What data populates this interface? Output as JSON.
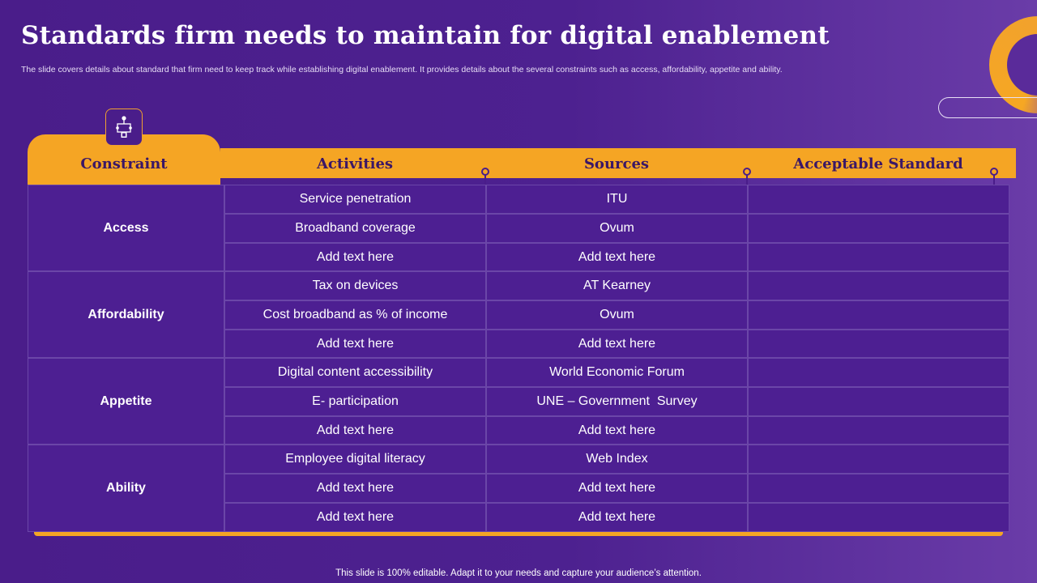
{
  "slide": {
    "title": "Standards firm needs to maintain for digital enablement",
    "subtitle": "The slide covers details about standard that firm need to keep track while establishing digital enablement. It provides details about the several constraints such as access, affordability, appetite and ability.",
    "footer": "This slide is 100% editable. Adapt it to your needs and capture your audience’s attention."
  },
  "table": {
    "headers": [
      "Constraint",
      "Activities",
      "Sources",
      "Acceptable Standard"
    ],
    "groups": [
      {
        "constraint": "Access",
        "rows": [
          {
            "activity": "Service penetration",
            "source": "ITU",
            "standard": ""
          },
          {
            "activity": "Broadband coverage",
            "source": "Ovum",
            "standard": ""
          },
          {
            "activity": "Add text here",
            "source": "Add text here",
            "standard": ""
          }
        ]
      },
      {
        "constraint": "Affordability",
        "rows": [
          {
            "activity": "Tax on devices",
            "source": "AT Kearney",
            "standard": ""
          },
          {
            "activity": "Cost broadband as % of income",
            "source": "Ovum",
            "standard": ""
          },
          {
            "activity": "Add text here",
            "source": "Add text here",
            "standard": ""
          }
        ]
      },
      {
        "constraint": "Appetite",
        "rows": [
          {
            "activity": "Digital content accessibility",
            "source": "World Economic Forum",
            "standard": ""
          },
          {
            "activity": "E- participation",
            "source": "UNE – Government  Survey",
            "standard": ""
          },
          {
            "activity": "Add text here",
            "source": "Add text here",
            "standard": ""
          }
        ]
      },
      {
        "constraint": "Ability",
        "rows": [
          {
            "activity": "Employee digital literacy",
            "source": "Web Index",
            "standard": ""
          },
          {
            "activity": "Add text here",
            "source": "Add text here",
            "standard": ""
          },
          {
            "activity": "Add text here",
            "source": "Add text here",
            "standard": ""
          }
        ]
      }
    ]
  },
  "icons": {
    "header_icon": "hierarchy-icon"
  },
  "colors": {
    "background": "#4a1d8a",
    "accent": "#f5a524",
    "header_text": "#3b1766"
  }
}
